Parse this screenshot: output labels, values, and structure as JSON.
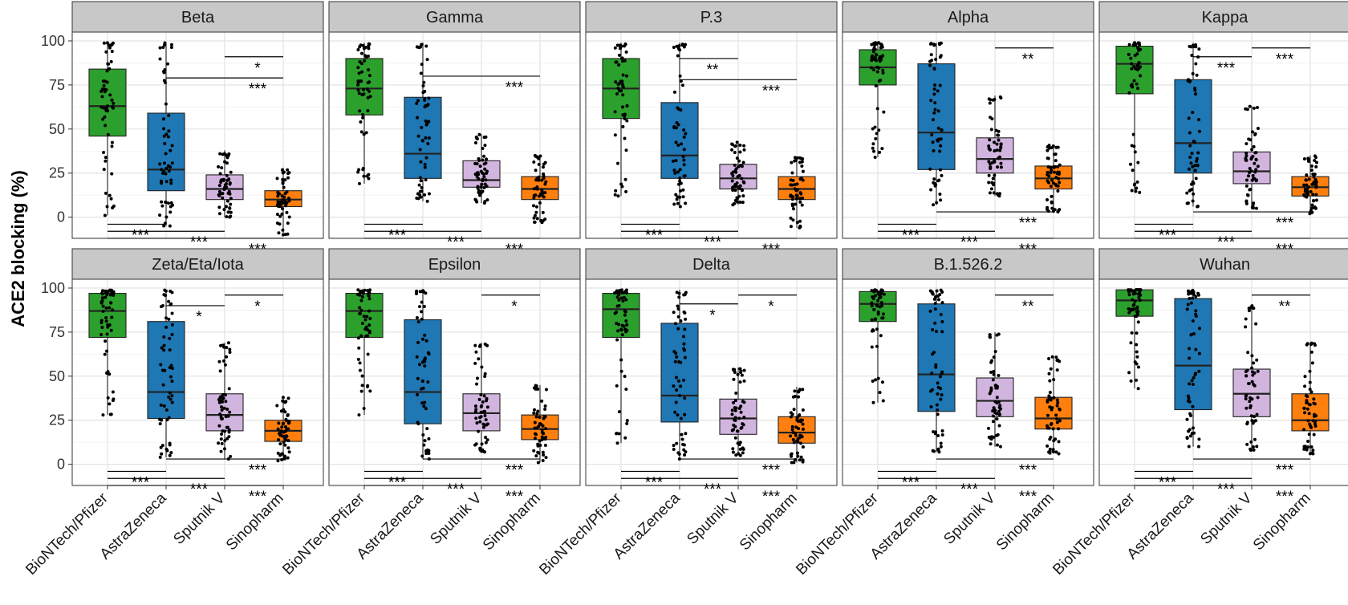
{
  "chart_data": {
    "type": "box",
    "ylabel": "ACE2 blocking (%)",
    "ylim": [
      -12,
      105
    ],
    "yticks": [
      0,
      25,
      50,
      75,
      100
    ],
    "grid": true,
    "categories": [
      "BioNTech/Pfizer",
      "AstraZeneca",
      "Sputnik V",
      "Sinopharm"
    ],
    "colors": {
      "BioNTech/Pfizer": "#2ca02c",
      "AstraZeneca": "#1f77b4",
      "Sputnik V": "#d2b5df",
      "Sinopharm": "#ff7f0e"
    },
    "panels": [
      {
        "title": "Beta",
        "boxes": [
          {
            "q1": 46,
            "median": 63,
            "q3": 84,
            "wlo": 1,
            "whi": 99
          },
          {
            "q1": 15,
            "median": 27,
            "q3": 59,
            "wlo": -5,
            "whi": 99
          },
          {
            "q1": 10,
            "median": 16,
            "q3": 24,
            "wlo": 0,
            "whi": 38
          },
          {
            "q1": 6,
            "median": 10,
            "q3": 15,
            "wlo": -10,
            "whi": 28
          }
        ],
        "brackets": [
          {
            "from": 2,
            "to": 3,
            "y": 91,
            "label": "*"
          },
          {
            "from": 1,
            "to": 3,
            "y": 79,
            "label": "***"
          },
          {
            "from": 0,
            "to": 1,
            "y": -4,
            "label": "***"
          },
          {
            "from": 0,
            "to": 2,
            "y": -8,
            "label": "***"
          },
          {
            "from": 0,
            "to": 3,
            "y": -12,
            "label": "***"
          }
        ]
      },
      {
        "title": "Gamma",
        "boxes": [
          {
            "q1": 58,
            "median": 73,
            "q3": 90,
            "wlo": 19,
            "whi": 99
          },
          {
            "q1": 22,
            "median": 36,
            "q3": 68,
            "wlo": 9,
            "whi": 99
          },
          {
            "q1": 17,
            "median": 21,
            "q3": 32,
            "wlo": 8,
            "whi": 47
          },
          {
            "q1": 10,
            "median": 16,
            "q3": 23,
            "wlo": -3,
            "whi": 35
          }
        ],
        "brackets": [
          {
            "from": 1,
            "to": 3,
            "y": 80,
            "label": "***"
          },
          {
            "from": 0,
            "to": 1,
            "y": -4,
            "label": "***"
          },
          {
            "from": 0,
            "to": 2,
            "y": -8,
            "label": "***"
          },
          {
            "from": 0,
            "to": 3,
            "y": -12,
            "label": "***"
          }
        ]
      },
      {
        "title": "P.3",
        "boxes": [
          {
            "q1": 56,
            "median": 73,
            "q3": 90,
            "wlo": 12,
            "whi": 99
          },
          {
            "q1": 22,
            "median": 35,
            "q3": 65,
            "wlo": 6,
            "whi": 99
          },
          {
            "q1": 16,
            "median": 22,
            "q3": 30,
            "wlo": 7,
            "whi": 43
          },
          {
            "q1": 10,
            "median": 16,
            "q3": 23,
            "wlo": -6,
            "whi": 34
          }
        ],
        "brackets": [
          {
            "from": 1,
            "to": 2,
            "y": 90,
            "label": "**"
          },
          {
            "from": 1,
            "to": 3,
            "y": 78,
            "label": "***"
          },
          {
            "from": 0,
            "to": 1,
            "y": -4,
            "label": "***"
          },
          {
            "from": 0,
            "to": 2,
            "y": -8,
            "label": "***"
          },
          {
            "from": 0,
            "to": 3,
            "y": -12,
            "label": "***"
          }
        ]
      },
      {
        "title": "Alpha",
        "boxes": [
          {
            "q1": 75,
            "median": 85,
            "q3": 95,
            "wlo": 34,
            "whi": 99
          },
          {
            "q1": 27,
            "median": 48,
            "q3": 87,
            "wlo": 7,
            "whi": 99
          },
          {
            "q1": 25,
            "median": 33,
            "q3": 45,
            "wlo": 12,
            "whi": 69
          },
          {
            "q1": 16,
            "median": 22,
            "q3": 29,
            "wlo": 3,
            "whi": 41
          }
        ],
        "brackets": [
          {
            "from": 2,
            "to": 3,
            "y": 96,
            "label": "**"
          },
          {
            "from": 1,
            "to": 3,
            "y": 3,
            "label": "***"
          },
          {
            "from": 0,
            "to": 1,
            "y": -4,
            "label": "***"
          },
          {
            "from": 0,
            "to": 2,
            "y": -8,
            "label": "***"
          },
          {
            "from": 0,
            "to": 3,
            "y": -12,
            "label": "***"
          }
        ]
      },
      {
        "title": "Kappa",
        "boxes": [
          {
            "q1": 70,
            "median": 87,
            "q3": 97,
            "wlo": 14,
            "whi": 99
          },
          {
            "q1": 25,
            "median": 42,
            "q3": 78,
            "wlo": 6,
            "whi": 99
          },
          {
            "q1": 19,
            "median": 26,
            "q3": 37,
            "wlo": 5,
            "whi": 63
          },
          {
            "q1": 12,
            "median": 17,
            "q3": 23,
            "wlo": 2,
            "whi": 35
          }
        ],
        "brackets": [
          {
            "from": 1,
            "to": 2,
            "y": 91,
            "label": "***"
          },
          {
            "from": 2,
            "to": 3,
            "y": 96,
            "label": "***"
          },
          {
            "from": 1,
            "to": 3,
            "y": 3,
            "label": "***"
          },
          {
            "from": 0,
            "to": 1,
            "y": -4,
            "label": "***"
          },
          {
            "from": 0,
            "to": 2,
            "y": -8,
            "label": "***"
          },
          {
            "from": 0,
            "to": 3,
            "y": -12,
            "label": "***"
          }
        ]
      },
      {
        "title": "Zeta/Eta/Iota",
        "boxes": [
          {
            "q1": 72,
            "median": 87,
            "q3": 97,
            "wlo": 28,
            "whi": 99
          },
          {
            "q1": 26,
            "median": 41,
            "q3": 81,
            "wlo": 4,
            "whi": 99
          },
          {
            "q1": 19,
            "median": 28,
            "q3": 40,
            "wlo": 3,
            "whi": 69
          },
          {
            "q1": 13,
            "median": 19,
            "q3": 25,
            "wlo": 2,
            "whi": 38
          }
        ],
        "brackets": [
          {
            "from": 1,
            "to": 2,
            "y": 90,
            "label": "*"
          },
          {
            "from": 2,
            "to": 3,
            "y": 96,
            "label": "*"
          },
          {
            "from": 1,
            "to": 3,
            "y": 3,
            "label": "***"
          },
          {
            "from": 0,
            "to": 1,
            "y": -4,
            "label": "***"
          },
          {
            "from": 0,
            "to": 2,
            "y": -8,
            "label": "***"
          },
          {
            "from": 0,
            "to": 3,
            "y": -12,
            "label": "***"
          }
        ]
      },
      {
        "title": "Epsilon",
        "boxes": [
          {
            "q1": 72,
            "median": 87,
            "q3": 97,
            "wlo": 28,
            "whi": 99
          },
          {
            "q1": 23,
            "median": 41,
            "q3": 82,
            "wlo": 3,
            "whi": 99
          },
          {
            "q1": 19,
            "median": 29,
            "q3": 40,
            "wlo": 7,
            "whi": 69
          },
          {
            "q1": 14,
            "median": 20,
            "q3": 28,
            "wlo": 1,
            "whi": 45
          }
        ],
        "brackets": [
          {
            "from": 2,
            "to": 3,
            "y": 96,
            "label": "*"
          },
          {
            "from": 1,
            "to": 3,
            "y": 3,
            "label": "***"
          },
          {
            "from": 0,
            "to": 1,
            "y": -4,
            "label": "***"
          },
          {
            "from": 0,
            "to": 2,
            "y": -8,
            "label": "***"
          },
          {
            "from": 0,
            "to": 3,
            "y": -12,
            "label": "***"
          }
        ]
      },
      {
        "title": "Delta",
        "boxes": [
          {
            "q1": 72,
            "median": 88,
            "q3": 97,
            "wlo": 12,
            "whi": 99
          },
          {
            "q1": 24,
            "median": 39,
            "q3": 80,
            "wlo": 3,
            "whi": 99
          },
          {
            "q1": 17,
            "median": 26,
            "q3": 37,
            "wlo": 5,
            "whi": 55
          },
          {
            "q1": 12,
            "median": 18,
            "q3": 27,
            "wlo": 1,
            "whi": 44
          }
        ],
        "brackets": [
          {
            "from": 1,
            "to": 2,
            "y": 91,
            "label": "*"
          },
          {
            "from": 2,
            "to": 3,
            "y": 96,
            "label": "*"
          },
          {
            "from": 1,
            "to": 3,
            "y": 3,
            "label": "***"
          },
          {
            "from": 0,
            "to": 1,
            "y": -4,
            "label": "***"
          },
          {
            "from": 0,
            "to": 2,
            "y": -8,
            "label": "***"
          },
          {
            "from": 0,
            "to": 3,
            "y": -12,
            "label": "***"
          }
        ]
      },
      {
        "title": "B.1.526.2",
        "boxes": [
          {
            "q1": 81,
            "median": 91,
            "q3": 98,
            "wlo": 35,
            "whi": 99
          },
          {
            "q1": 30,
            "median": 51,
            "q3": 91,
            "wlo": 7,
            "whi": 99
          },
          {
            "q1": 27,
            "median": 36,
            "q3": 49,
            "wlo": 10,
            "whi": 75
          },
          {
            "q1": 20,
            "median": 26,
            "q3": 38,
            "wlo": 6,
            "whi": 61
          }
        ],
        "brackets": [
          {
            "from": 2,
            "to": 3,
            "y": 96,
            "label": "**"
          },
          {
            "from": 1,
            "to": 3,
            "y": 3,
            "label": "***"
          },
          {
            "from": 0,
            "to": 1,
            "y": -4,
            "label": "***"
          },
          {
            "from": 0,
            "to": 2,
            "y": -8,
            "label": "***"
          },
          {
            "from": 0,
            "to": 3,
            "y": -12,
            "label": "***"
          }
        ]
      },
      {
        "title": "Wuhan",
        "boxes": [
          {
            "q1": 84,
            "median": 93,
            "q3": 99,
            "wlo": 43,
            "whi": 99
          },
          {
            "q1": 31,
            "median": 56,
            "q3": 94,
            "wlo": 10,
            "whi": 99
          },
          {
            "q1": 27,
            "median": 40,
            "q3": 54,
            "wlo": 8,
            "whi": 90
          },
          {
            "q1": 19,
            "median": 25,
            "q3": 40,
            "wlo": 6,
            "whi": 69
          }
        ],
        "brackets": [
          {
            "from": 2,
            "to": 3,
            "y": 96,
            "label": "**"
          },
          {
            "from": 1,
            "to": 3,
            "y": 3,
            "label": "***"
          },
          {
            "from": 0,
            "to": 1,
            "y": -4,
            "label": "***"
          },
          {
            "from": 0,
            "to": 2,
            "y": -8,
            "label": "***"
          },
          {
            "from": 0,
            "to": 3,
            "y": -12,
            "label": "***"
          }
        ]
      }
    ]
  }
}
